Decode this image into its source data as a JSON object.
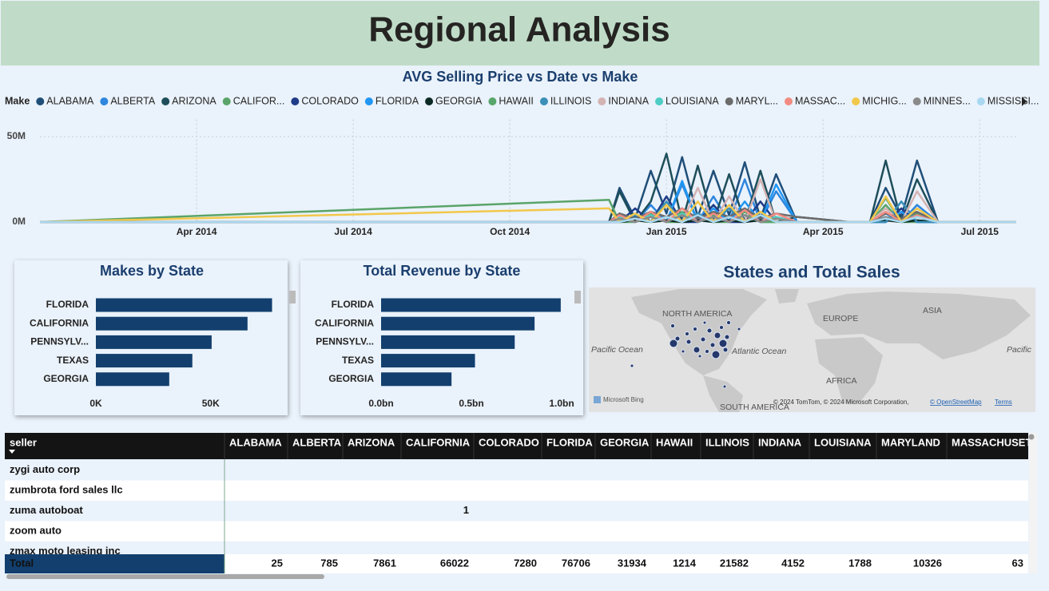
{
  "title": "Regional Analysis",
  "chart_data": [
    {
      "type": "line",
      "title": "AVG Selling Price vs Date vs Make",
      "legend_title": "Make",
      "x": [
        0,
        10.9,
        11.1,
        11.4,
        11.7,
        12.0,
        12.3,
        12.6,
        12.9,
        13.2,
        13.5,
        13.8,
        14.1,
        14.5,
        15.5,
        15.9,
        16.2,
        16.5,
        16.8,
        17.2,
        18.7
      ],
      "xlim": [
        0,
        18.7
      ],
      "xticks": [
        {
          "value": 3,
          "label": "Apr 2014"
        },
        {
          "value": 6,
          "label": "Jul 2014"
        },
        {
          "value": 9,
          "label": "Oct 2014"
        },
        {
          "value": 12,
          "label": "Jan 2015"
        },
        {
          "value": 15,
          "label": "Apr 2015"
        },
        {
          "value": 18,
          "label": "Jul 2015"
        }
      ],
      "ylim": [
        0,
        60000000
      ],
      "yticks": [
        {
          "value": 0,
          "label": "0M"
        },
        {
          "value": 50000000,
          "label": "50M"
        }
      ],
      "grid": true,
      "series": [
        {
          "name": "ALABAMA",
          "color": "#1f4e79",
          "values": [
            0,
            0,
            20000000.0,
            2000000.0,
            30000000.0,
            5000000.0,
            38000000.0,
            3000000.0,
            30000000.0,
            4000000.0,
            35000000.0,
            2000000.0,
            28000000.0,
            0,
            0,
            0,
            20000000.0,
            3000000.0,
            36000000.0,
            0,
            0
          ]
        },
        {
          "name": "ALBERTA",
          "color": "#2e86de",
          "values": [
            0,
            0,
            5000000.0,
            0,
            10000000.0,
            0,
            22000000.0,
            0,
            15000000.0,
            0,
            25000000.0,
            0,
            18000000.0,
            0,
            0,
            0,
            5000000.0,
            0,
            10000000.0,
            0,
            0
          ]
        },
        {
          "name": "ARIZONA",
          "color": "#1d4e5a",
          "values": [
            0,
            0,
            18000000.0,
            0,
            12000000.0,
            40000000.0,
            0,
            33000000.0,
            0,
            28000000.0,
            0,
            30000000.0,
            0,
            3000000.0,
            0,
            0,
            36000000.0,
            0,
            25000000.0,
            0,
            0
          ]
        },
        {
          "name": "CALIFOR...",
          "color": "#5aa469",
          "values": [
            0,
            13000000.0,
            0,
            0,
            3000000.0,
            0,
            0,
            5000000.0,
            0,
            0,
            4000000.0,
            0,
            0,
            0,
            0,
            0,
            10000000.0,
            0,
            0,
            0,
            0
          ]
        },
        {
          "name": "COLORADO",
          "color": "#1f3c88",
          "values": [
            0,
            0,
            0,
            8000000.0,
            0,
            15000000.0,
            0,
            0,
            10000000.0,
            0,
            0,
            12000000.0,
            0,
            0,
            0,
            0,
            0,
            8000000.0,
            0,
            0,
            0
          ]
        },
        {
          "name": "FLORIDA",
          "color": "#2196f3",
          "values": [
            0,
            0,
            3000000.0,
            0,
            6000000.0,
            0,
            24000000.0,
            0,
            8000000.0,
            0,
            12000000.0,
            0,
            22000000.0,
            0,
            0,
            0,
            0,
            6000000.0,
            0,
            0,
            0
          ]
        },
        {
          "name": "GEORGIA",
          "color": "#0b2a24",
          "values": [
            0,
            0,
            0,
            1000000.0,
            0,
            1000000.0,
            0,
            1000000.0,
            0,
            1000000.0,
            0,
            1000000.0,
            0,
            0,
            0,
            0,
            1000000.0,
            0,
            1000000.0,
            0,
            0
          ]
        },
        {
          "name": "HAWAII",
          "color": "#58a66b",
          "values": [
            0,
            0,
            2000000.0,
            0,
            5000000.0,
            0,
            6000000.0,
            0,
            4000000.0,
            0,
            6000000.0,
            0,
            0,
            0,
            0,
            0,
            14000000.0,
            0,
            5000000.0,
            0,
            0
          ]
        },
        {
          "name": "ILLINOIS",
          "color": "#3a8fb7",
          "values": [
            0,
            0,
            0,
            4000000.0,
            0,
            12000000.0,
            0,
            5000000.0,
            0,
            8000000.0,
            0,
            6000000.0,
            0,
            0,
            0,
            0,
            0,
            12000000.0,
            0,
            0,
            0
          ]
        },
        {
          "name": "INDIANA",
          "color": "#d4b3b3",
          "values": [
            0,
            0,
            0,
            5000000.0,
            0,
            10000000.0,
            0,
            20000000.0,
            0,
            15000000.0,
            0,
            25000000.0,
            0,
            0,
            0,
            0,
            8000000.0,
            0,
            18000000.0,
            0,
            0
          ]
        },
        {
          "name": "LOUISIANA",
          "color": "#4ecdc4",
          "values": [
            0,
            0,
            3000000.0,
            0,
            4000000.0,
            0,
            5000000.0,
            0,
            3000000.0,
            0,
            4000000.0,
            0,
            3000000.0,
            0,
            0,
            0,
            3000000.0,
            0,
            3000000.0,
            0,
            0
          ]
        },
        {
          "name": "MARYL...",
          "color": "#6b6b6b",
          "values": [
            0,
            0,
            5000000.0,
            2000000.0,
            6000000.0,
            3000000.0,
            8000000.0,
            2000000.0,
            6000000.0,
            3000000.0,
            8000000.0,
            2000000.0,
            5000000.0,
            3000000.0,
            0,
            0,
            5000000.0,
            2000000.0,
            6000000.0,
            0,
            0
          ]
        },
        {
          "name": "MASSAC...",
          "color": "#f28b82",
          "values": [
            0,
            0,
            4000000.0,
            0,
            6000000.0,
            0,
            8000000.0,
            0,
            5000000.0,
            0,
            7000000.0,
            0,
            5000000.0,
            0,
            0,
            0,
            6000000.0,
            0,
            4000000.0,
            0,
            0
          ]
        },
        {
          "name": "MICHIG...",
          "color": "#f2c84b",
          "values": [
            0,
            8000000.0,
            0,
            5000000.0,
            0,
            10000000.0,
            0,
            12000000.0,
            0,
            10000000.0,
            0,
            6000000.0,
            0,
            0,
            0,
            0,
            15000000.0,
            0,
            8000000.0,
            0,
            0
          ]
        },
        {
          "name": "MINNES...",
          "color": "#8a8a8a",
          "values": [
            0,
            0,
            2000000.0,
            0,
            3000000.0,
            0,
            4000000.0,
            0,
            3000000.0,
            0,
            4000000.0,
            0,
            2000000.0,
            0,
            0,
            0,
            3000000.0,
            0,
            3000000.0,
            0,
            0
          ]
        },
        {
          "name": "MISSISSI...",
          "color": "#a8d8f0",
          "values": [
            0,
            0,
            0,
            2000000.0,
            0,
            3000000.0,
            0,
            4000000.0,
            0,
            3000000.0,
            0,
            4000000.0,
            0,
            0,
            0,
            0,
            2000000.0,
            0,
            3000000.0,
            0,
            0
          ]
        }
      ]
    },
    {
      "type": "bar",
      "orientation": "horizontal",
      "title": "Makes by State",
      "color": "#123f6e",
      "categories": [
        "FLORIDA",
        "CALIFORNIA",
        "PENNSYLV...",
        "TEXAS",
        "GEORGIA"
      ],
      "values": [
        76706,
        66022,
        50400,
        42000,
        31934
      ],
      "xlim": [
        0,
        80000
      ],
      "xticks": [
        {
          "value": 0,
          "label": "0K"
        },
        {
          "value": 50000,
          "label": "50K"
        }
      ]
    },
    {
      "type": "bar",
      "orientation": "horizontal",
      "title": "Total Revenue by State",
      "color": "#123f6e",
      "categories": [
        "FLORIDA",
        "CALIFORNIA",
        "PENNSYLV...",
        "TEXAS",
        "GEORGIA"
      ],
      "values": [
        995000000,
        850000000,
        740000000,
        520000000,
        390000000
      ],
      "xlim": [
        0,
        1000000000
      ],
      "xticks": [
        {
          "value": 0,
          "label": "0.0bn"
        },
        {
          "value": 500000000,
          "label": "0.5bn"
        },
        {
          "value": 1000000000,
          "label": "1.0bn"
        }
      ]
    }
  ],
  "map": {
    "title": "States and Total Sales",
    "labels": [
      "NORTH AMERICA",
      "EUROPE",
      "ASIA",
      "Pacific Ocean",
      "Atlantic Ocean",
      "Pacific",
      "AFRICA",
      "SOUTH AMERICA"
    ],
    "brand": "Microsoft Bing",
    "credits": "© 2024 TomTom, © 2024 Microsoft Corporation,",
    "osm": "© OpenStreetMap",
    "terms": "Terms"
  },
  "table": {
    "columns": [
      "seller",
      "ALABAMA",
      "ALBERTA",
      "ARIZONA",
      "CALIFORNIA",
      "COLORADO",
      "FLORIDA",
      "GEORGIA",
      "HAWAII",
      "ILLINOIS",
      "INDIANA",
      "LOUISIANA",
      "MARYLAND",
      "MASSACHUSET"
    ],
    "rows": [
      {
        "seller": "zygi auto corp"
      },
      {
        "seller": "zumbrota ford sales llc"
      },
      {
        "seller": "zuma autoboat",
        "CALIFORNIA": 1
      },
      {
        "seller": "zoom auto"
      },
      {
        "seller": "zmax moto leasing inc"
      }
    ],
    "total": {
      "label": "Total",
      "values": [
        25,
        785,
        7861,
        66022,
        7280,
        76706,
        31934,
        1214,
        21582,
        4152,
        1788,
        10326,
        63
      ]
    }
  }
}
